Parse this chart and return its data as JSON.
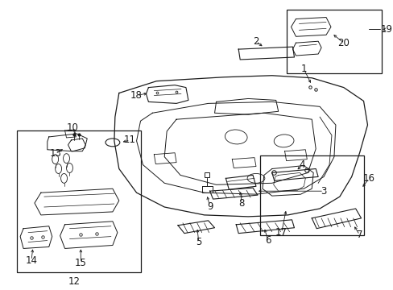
{
  "bg_color": "#ffffff",
  "line_color": "#1a1a1a",
  "figsize": [
    4.89,
    3.6
  ],
  "dpi": 100,
  "font_size": 8.5
}
